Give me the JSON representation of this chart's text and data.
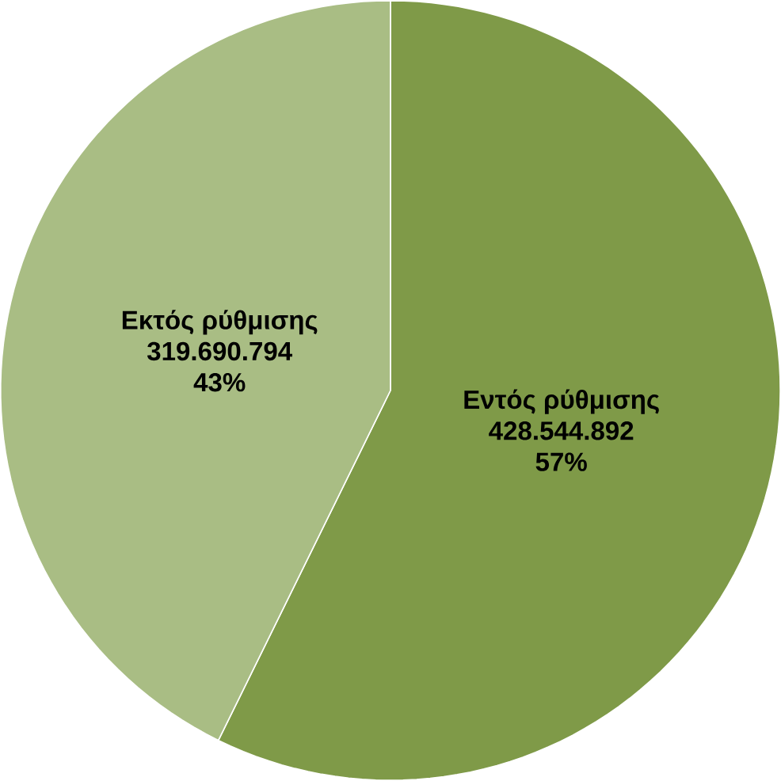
{
  "chart_data": {
    "type": "pie",
    "categories": [
      "Εντός ρύθμισης",
      "Εκτός ρύθμισης"
    ],
    "values": [
      428544892,
      319690794
    ],
    "colors": [
      "#7f9a48",
      "#a9bd84"
    ],
    "value_labels": [
      "428.544.892",
      "319.690.794"
    ],
    "annotations": [
      {
        "text": "57%",
        "x": "Εντός ρύθμισης"
      },
      {
        "text": "43%",
        "x": "Εκτός ρύθμισης"
      }
    ]
  }
}
